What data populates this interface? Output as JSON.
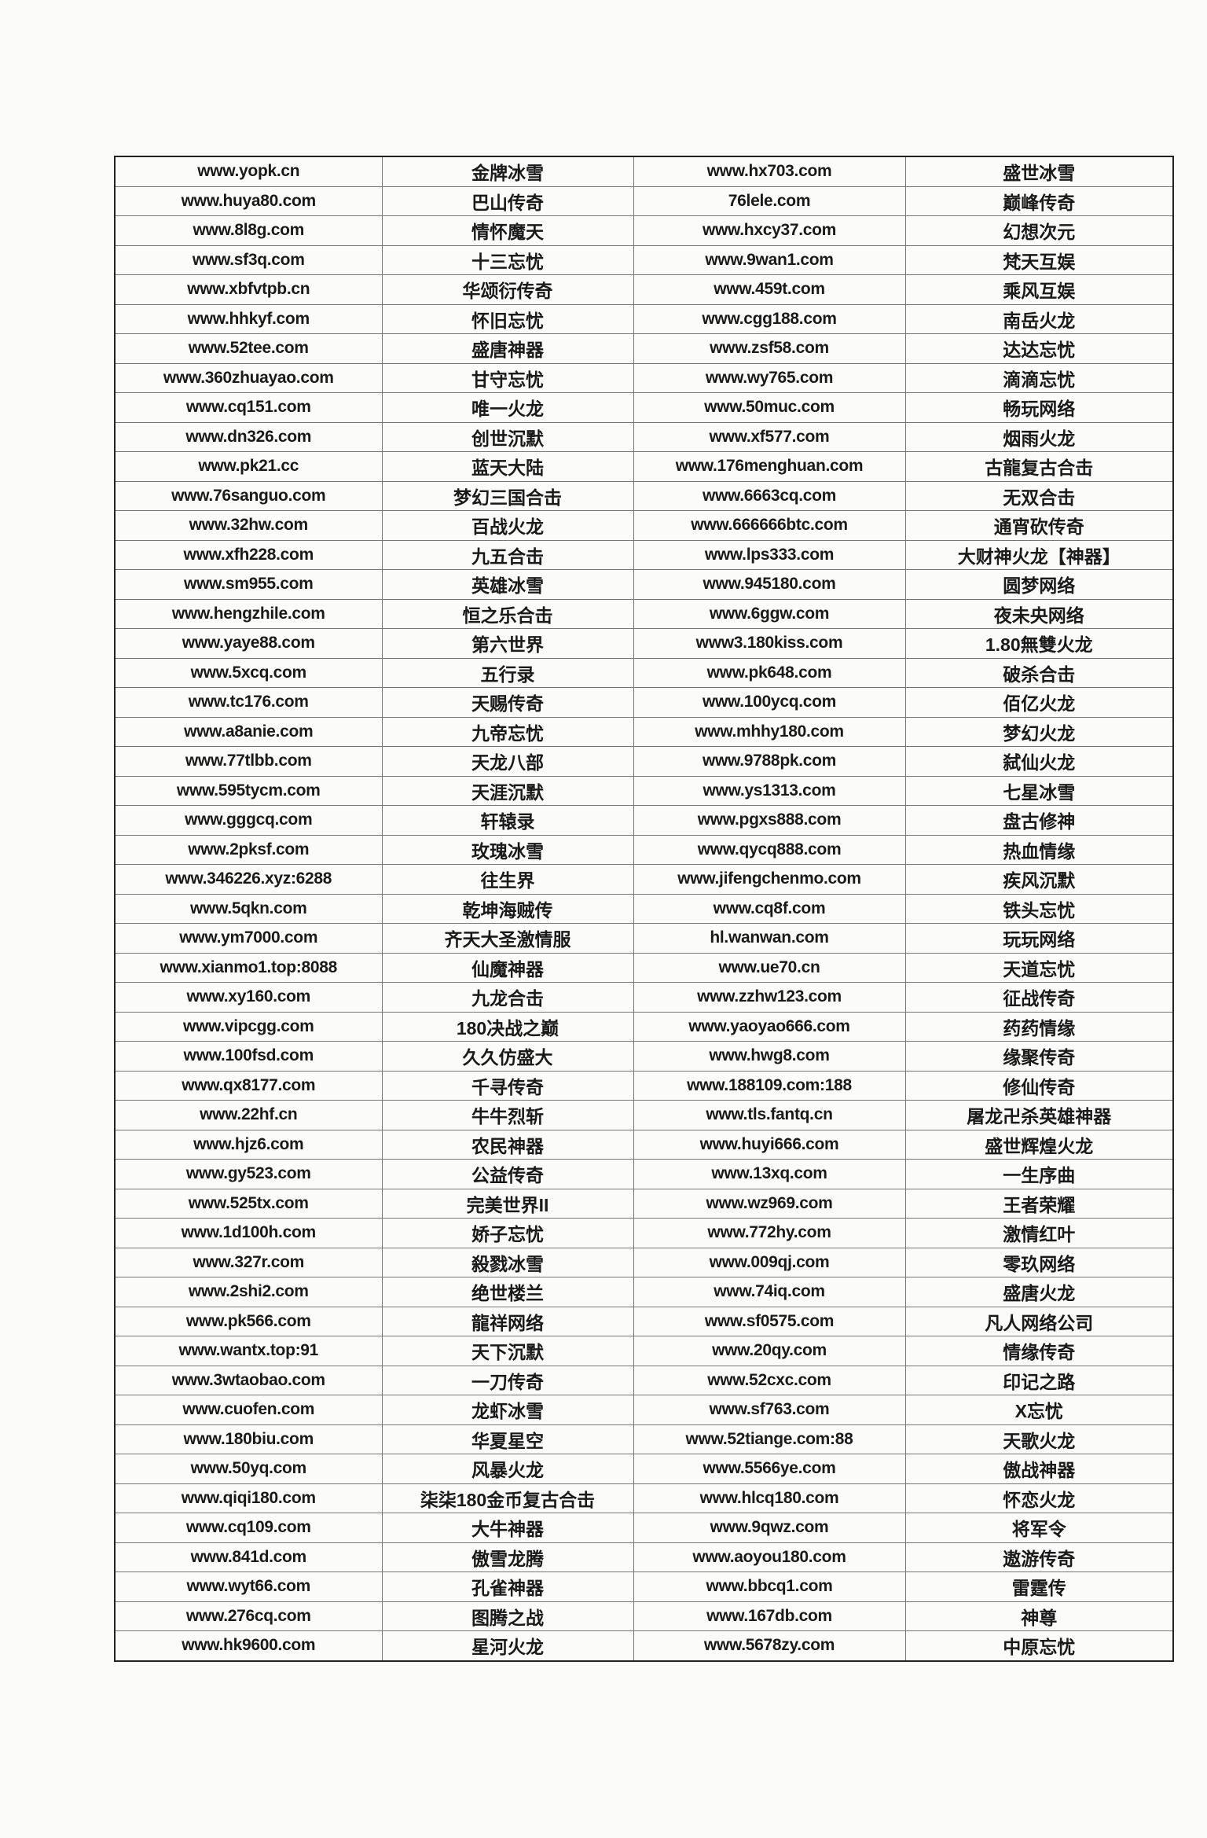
{
  "table": {
    "rows": [
      [
        "www.yopk.cn",
        "金牌冰雪",
        "www.hx703.com",
        "盛世冰雪"
      ],
      [
        "www.huya80.com",
        "巴山传奇",
        "76lele.com",
        "巅峰传奇"
      ],
      [
        "www.8l8g.com",
        "情怀魔天",
        "www.hxcy37.com",
        "幻想次元"
      ],
      [
        "www.sf3q.com",
        "十三忘忧",
        "www.9wan1.com",
        "梵天互娱"
      ],
      [
        "www.xbfvtpb.cn",
        "华颂衍传奇",
        "www.459t.com",
        "乘风互娱"
      ],
      [
        "www.hhkyf.com",
        "怀旧忘忧",
        "www.cgg188.com",
        "南岳火龙"
      ],
      [
        "www.52tee.com",
        "盛唐神器",
        "www.zsf58.com",
        "达达忘忧"
      ],
      [
        "www.360zhuayao.com",
        "甘守忘忧",
        "www.wy765.com",
        "滴滴忘忧"
      ],
      [
        "www.cq151.com",
        "唯一火龙",
        "www.50muc.com",
        "畅玩网络"
      ],
      [
        "www.dn326.com",
        "创世沉默",
        "www.xf577.com",
        "烟雨火龙"
      ],
      [
        "www.pk21.cc",
        "蓝天大陆",
        "www.176menghuan.com",
        "古龍复古合击"
      ],
      [
        "www.76sanguo.com",
        "梦幻三国合击",
        "www.6663cq.com",
        "无双合击"
      ],
      [
        "www.32hw.com",
        "百战火龙",
        "www.666666btc.com",
        "通宵砍传奇"
      ],
      [
        "www.xfh228.com",
        "九五合击",
        "www.lps333.com",
        "大财神火龙【神器】"
      ],
      [
        "www.sm955.com",
        "英雄冰雪",
        "www.945180.com",
        "圆梦网络"
      ],
      [
        "www.hengzhile.com",
        "恒之乐合击",
        "www.6ggw.com",
        "夜未央网络"
      ],
      [
        "www.yaye88.com",
        "第六世界",
        "www3.180kiss.com",
        "1.80無雙火龙"
      ],
      [
        "www.5xcq.com",
        "五行录",
        "www.pk648.com",
        "破杀合击"
      ],
      [
        "www.tc176.com",
        "天赐传奇",
        "www.100ycq.com",
        "佰亿火龙"
      ],
      [
        "www.a8anie.com",
        "九帝忘忧",
        "www.mhhy180.com",
        "梦幻火龙"
      ],
      [
        "www.77tlbb.com",
        "天龙八部",
        "www.9788pk.com",
        "弑仙火龙"
      ],
      [
        "www.595tycm.com",
        "天涯沉默",
        "www.ys1313.com",
        "七星冰雪"
      ],
      [
        "www.gggcq.com",
        "轩辕录",
        "www.pgxs888.com",
        "盘古修神"
      ],
      [
        "www.2pksf.com",
        "玫瑰冰雪",
        "www.qycq888.com",
        "热血情缘"
      ],
      [
        "www.346226.xyz:6288",
        "往生界",
        "www.jifengchenmo.com",
        "疾风沉默"
      ],
      [
        "www.5qkn.com",
        "乾坤海贼传",
        "www.cq8f.com",
        "铁头忘忧"
      ],
      [
        "www.ym7000.com",
        "齐天大圣激情服",
        "hl.wanwan.com",
        "玩玩网络"
      ],
      [
        "www.xianmo1.top:8088",
        "仙魔神器",
        "www.ue70.cn",
        "天道忘忧"
      ],
      [
        "www.xy160.com",
        "九龙合击",
        "www.zzhw123.com",
        "征战传奇"
      ],
      [
        "www.vipcgg.com",
        "180决战之巅",
        "www.yaoyao666.com",
        "药药情缘"
      ],
      [
        "www.100fsd.com",
        "久久仿盛大",
        "www.hwg8.com",
        "缘聚传奇"
      ],
      [
        "www.qx8177.com",
        "千寻传奇",
        "www.188109.com:188",
        "修仙传奇"
      ],
      [
        "www.22hf.cn",
        "牛牛烈斩",
        "www.tls.fantq.cn",
        "屠龙卍杀英雄神器"
      ],
      [
        "www.hjz6.com",
        "农民神器",
        "www.huyi666.com",
        "盛世辉煌火龙"
      ],
      [
        "www.gy523.com",
        "公益传奇",
        "www.13xq.com",
        "一生序曲"
      ],
      [
        "www.525tx.com",
        "完美世界II",
        "www.wz969.com",
        "王者荣耀"
      ],
      [
        "www.1d100h.com",
        "娇子忘忧",
        "www.772hy.com",
        "激情红叶"
      ],
      [
        "www.327r.com",
        "殺戮冰雪",
        "www.009qj.com",
        "零玖网络"
      ],
      [
        "www.2shi2.com",
        "绝世楼兰",
        "www.74iq.com",
        "盛唐火龙"
      ],
      [
        "www.pk566.com",
        "龍祥网络",
        "www.sf0575.com",
        "凡人网络公司"
      ],
      [
        "www.wantx.top:91",
        "天下沉默",
        "www.20qy.com",
        "情缘传奇"
      ],
      [
        "www.3wtaobao.com",
        "一刀传奇",
        "www.52cxc.com",
        "印记之路"
      ],
      [
        "www.cuofen.com",
        "龙虾冰雪",
        "www.sf763.com",
        "X忘忧"
      ],
      [
        "www.180biu.com",
        "华夏星空",
        "www.52tiange.com:88",
        "天歌火龙"
      ],
      [
        "www.50yq.com",
        "风暴火龙",
        "www.5566ye.com",
        "傲战神器"
      ],
      [
        "www.qiqi180.com",
        "柒柒180金币复古合击",
        "www.hlcq180.com",
        "怀恋火龙"
      ],
      [
        "www.cq109.com",
        "大牛神器",
        "www.9qwz.com",
        "将军令"
      ],
      [
        "www.841d.com",
        "傲雪龙腾",
        "www.aoyou180.com",
        "遨游传奇"
      ],
      [
        "www.wyt66.com",
        "孔雀神器",
        "www.bbcq1.com",
        "雷霆传"
      ],
      [
        "www.276cq.com",
        "图腾之战",
        "www.167db.com",
        "神尊"
      ],
      [
        "www.hk9600.com",
        "星河火龙",
        "www.5678zy.com",
        "中原忘忧"
      ]
    ]
  }
}
